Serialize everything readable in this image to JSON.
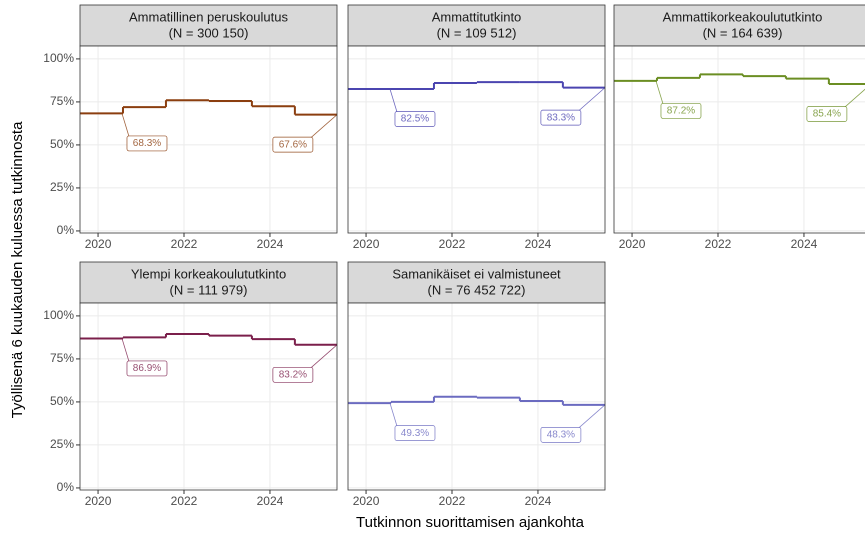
{
  "ylabel": "Työllisenä 6 kuukauden kuluessa tutkinnosta",
  "xlabel": "Tutkinnon suorittamisen ajankohta",
  "xlim": [
    2019.58,
    2025.56
  ],
  "xticks": [
    2020,
    2022,
    2024
  ],
  "ylim": [
    -1.2,
    107.5
  ],
  "yticks": [
    {
      "value": 0,
      "label": "0%"
    },
    {
      "value": 25,
      "label": "25%"
    },
    {
      "value": 50,
      "label": "50%"
    },
    {
      "value": 75,
      "label": "75%"
    },
    {
      "value": 100,
      "label": "100%"
    }
  ],
  "grid": true,
  "chart_data": [
    {
      "type": "step",
      "title": "Ammatillinen peruskoulutus",
      "subtitle": "(N = 300 150)",
      "color": "#8B3E0F",
      "x": [
        2019.58,
        2020.58,
        2021.58,
        2022.58,
        2023.58,
        2024.58
      ],
      "values": [
        68.3,
        72,
        76,
        75.5,
        72.5,
        67.6
      ],
      "value_labels": [
        "68.3%",
        null,
        null,
        null,
        null,
        "67.6%"
      ]
    },
    {
      "type": "step",
      "title": "Ammattitutkinto",
      "subtitle": "(N = 109 512)",
      "color": "#4B45B0",
      "x": [
        2019.58,
        2020.58,
        2021.58,
        2022.58,
        2023.58,
        2024.58
      ],
      "values": [
        82.5,
        82.5,
        86,
        86.5,
        86.5,
        83.3
      ],
      "value_labels": [
        "82.5%",
        null,
        null,
        null,
        null,
        "83.3%"
      ]
    },
    {
      "type": "step",
      "title": "Ammattikorkeakoulututkinto",
      "subtitle": "(N = 164 639)",
      "color": "#6B8E23",
      "x": [
        2019.58,
        2020.58,
        2021.58,
        2022.58,
        2023.58,
        2024.58
      ],
      "values": [
        87.2,
        89,
        91,
        90,
        88.5,
        85.4
      ],
      "value_labels": [
        "87.2%",
        null,
        null,
        null,
        null,
        "85.4%"
      ]
    },
    {
      "type": "step",
      "title": "Ylempi korkeakoulututkinto",
      "subtitle": "(N = 111 979)",
      "color": "#7B1F4B",
      "x": [
        2019.58,
        2020.58,
        2021.58,
        2022.58,
        2023.58,
        2024.58
      ],
      "values": [
        86.9,
        87.5,
        89.5,
        88.5,
        86.5,
        83.2
      ],
      "value_labels": [
        "86.9%",
        null,
        null,
        null,
        null,
        "83.2%"
      ]
    },
    {
      "type": "step",
      "title": "Samanikäiset ei valmistuneet",
      "subtitle": "(N = 76 452 722)",
      "color": "#6B6BC0",
      "x": [
        2019.58,
        2020.58,
        2021.58,
        2022.58,
        2023.58,
        2024.58
      ],
      "values": [
        49.3,
        50,
        53,
        52.5,
        50.5,
        48.3
      ],
      "value_labels": [
        "49.3%",
        null,
        null,
        null,
        null,
        "48.3%"
      ]
    }
  ]
}
